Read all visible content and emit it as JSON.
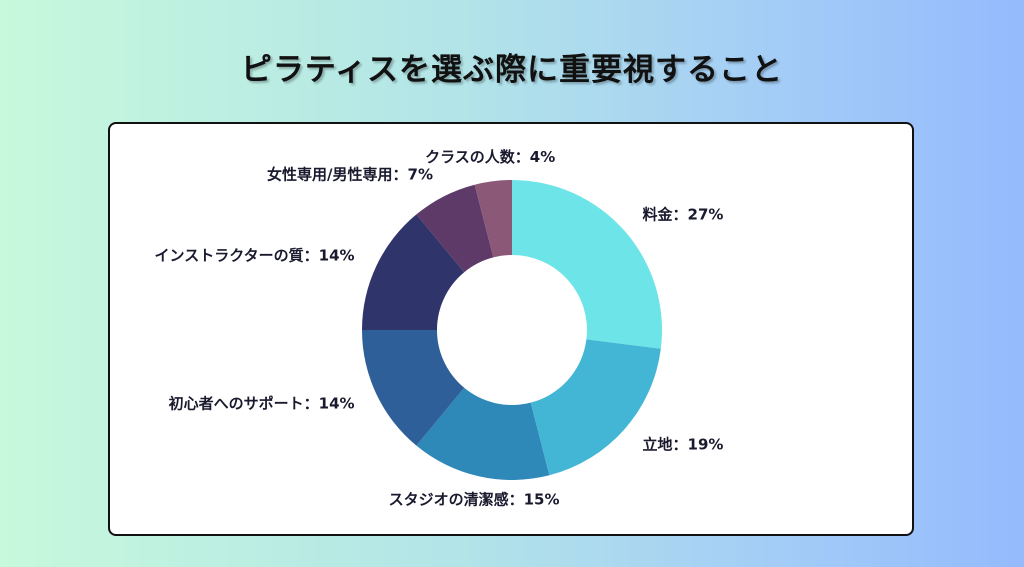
{
  "chart_data": {
    "type": "pie",
    "title": "ピラティスを選ぶ際に重要視すること",
    "donut": true,
    "slices": [
      {
        "label": "料金",
        "value": 27,
        "color": "#6de4e8"
      },
      {
        "label": "立地",
        "value": 19,
        "color": "#44b6d5"
      },
      {
        "label": "スタジオの清潔感",
        "value": 15,
        "color": "#2e88b8"
      },
      {
        "label": "初心者へのサポート",
        "value": 14,
        "color": "#2e5f98"
      },
      {
        "label": "インストラクターの質",
        "value": 14,
        "color": "#2f346b"
      },
      {
        "label": "女性専用/男性専用",
        "value": 7,
        "color": "#5e3a68"
      },
      {
        "label": "クラスの人数",
        "value": 4,
        "color": "#8b5878"
      }
    ]
  }
}
